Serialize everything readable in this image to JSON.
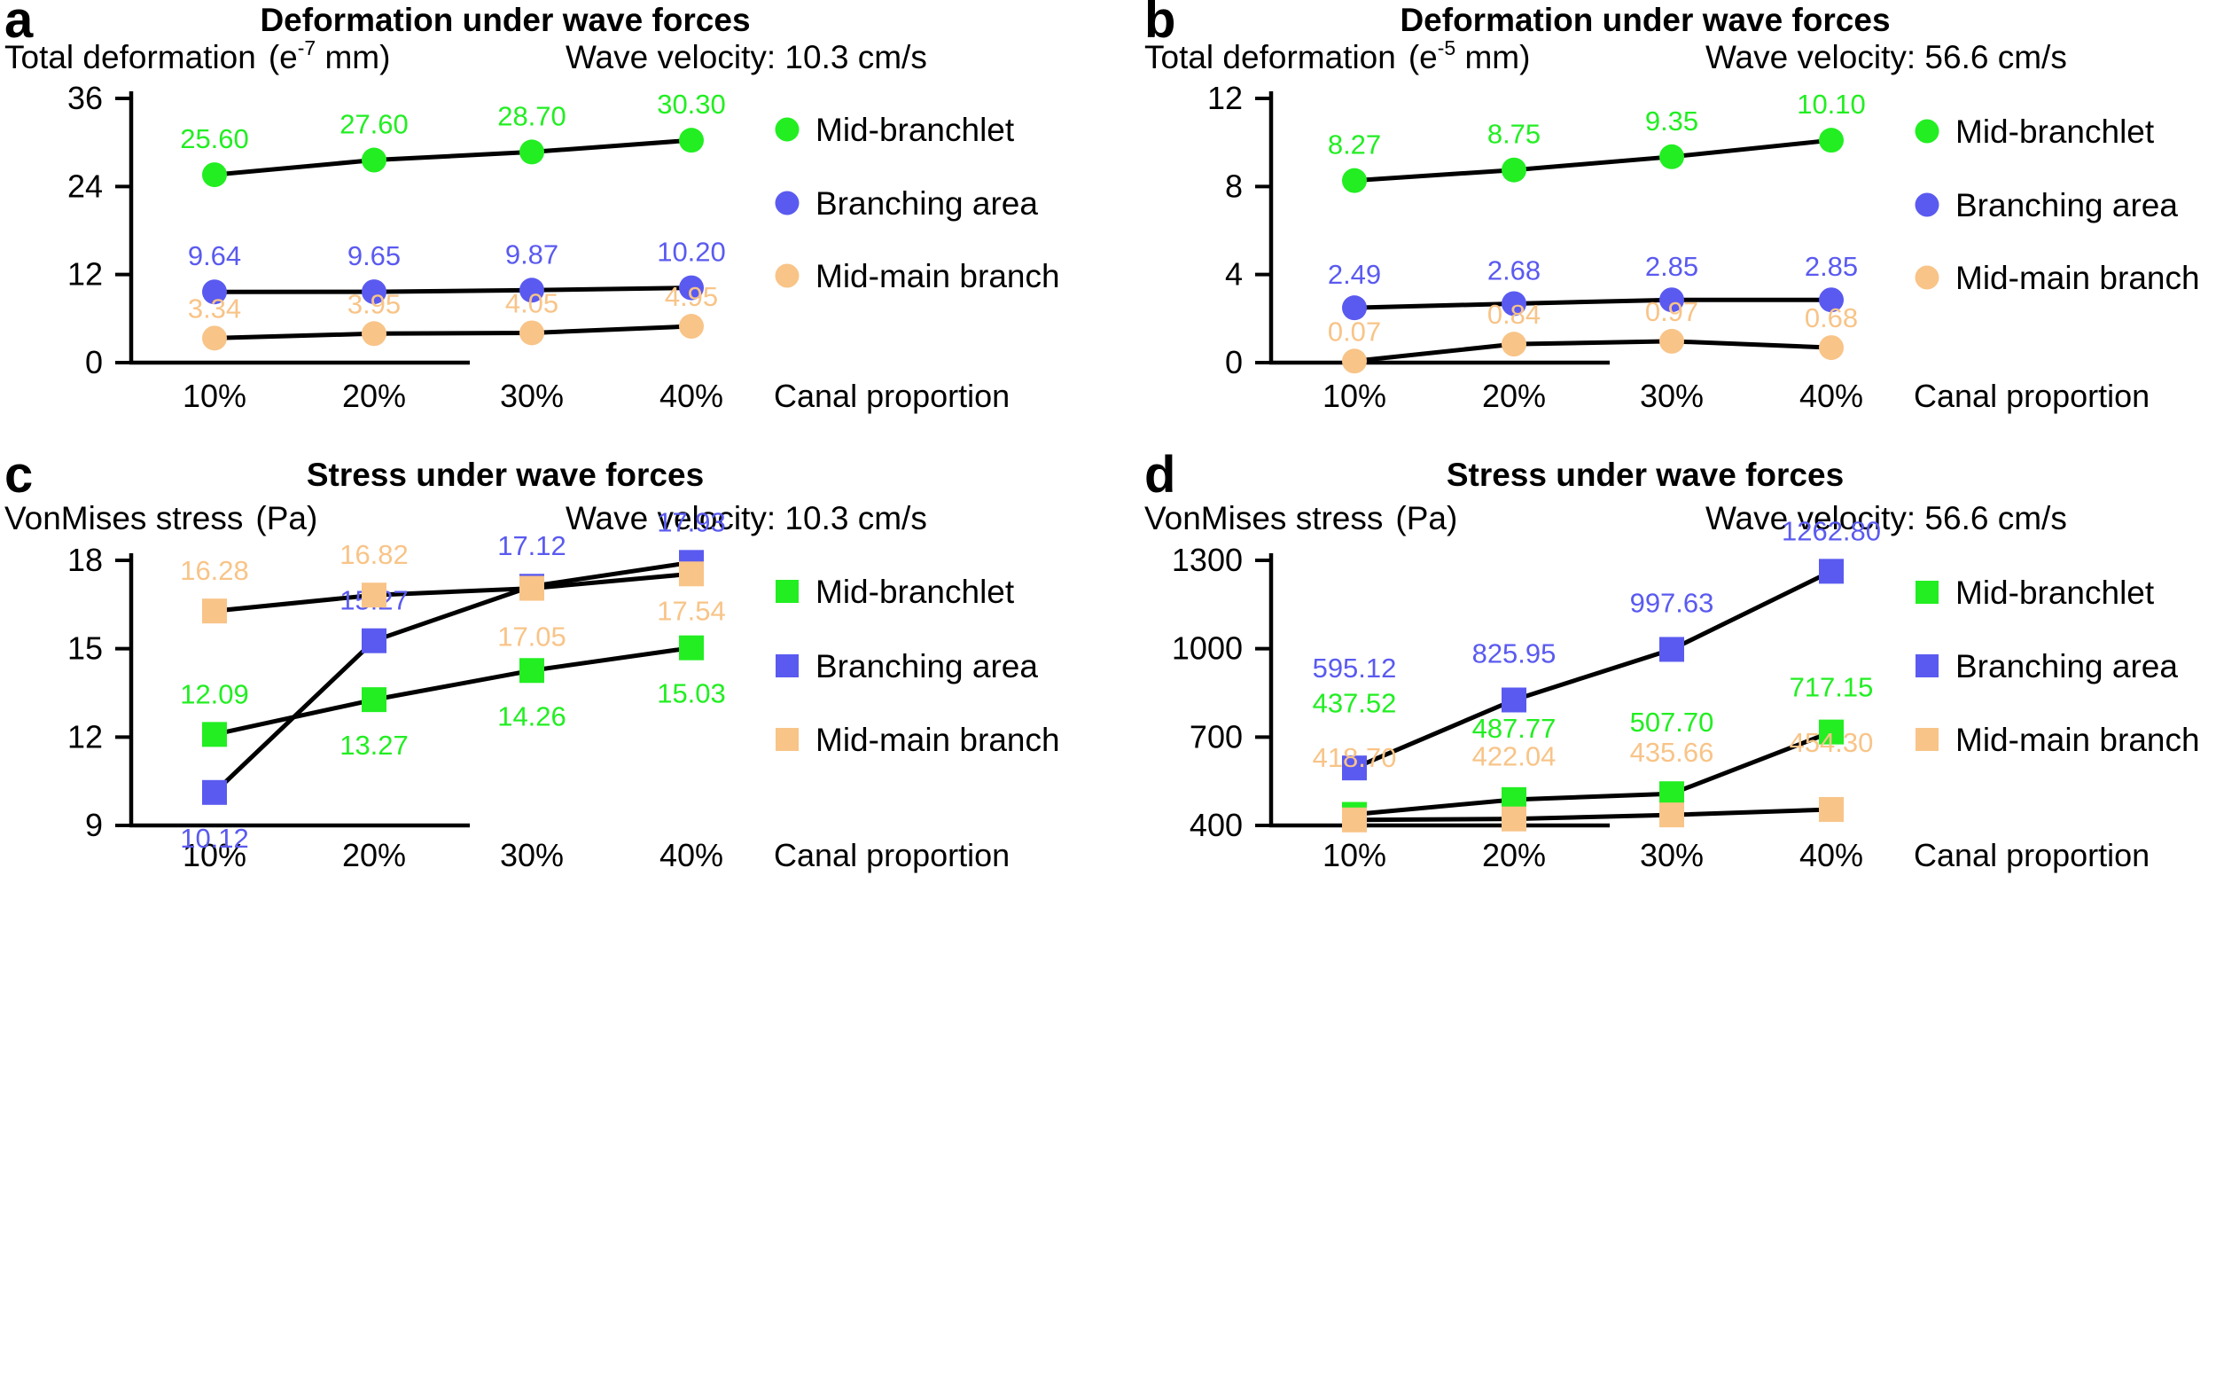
{
  "colors": {
    "mid_branchlet": "#22ee22",
    "branching_area": "#5a5af0",
    "mid_main_branch": "#f8c488",
    "line": "#000000",
    "axis": "#000000"
  },
  "chart_data": [
    {
      "type": "line",
      "panel": "a",
      "title": "Deformation under wave forces",
      "ylabel": "Total deformation",
      "yunit_base": "(e",
      "yunit_exp": "-7",
      "yunit_rest": " mm)",
      "condition": "Wave velocity: 10.3 cm/s",
      "xlabel": "Canal proportion",
      "marker": "circle",
      "categories": [
        "10%",
        "20%",
        "30%",
        "40%"
      ],
      "ylim": [
        0,
        36
      ],
      "yticks": [
        "0",
        "12",
        "24",
        "36"
      ],
      "legend": [
        "Mid-branchlet",
        "Branching area",
        "Mid-main branch"
      ],
      "series": [
        {
          "name": "Mid-branchlet",
          "values": [
            25.6,
            27.6,
            28.7,
            30.3
          ],
          "labels": [
            "25.60",
            "27.60",
            "28.70",
            "30.30"
          ]
        },
        {
          "name": "Branching area",
          "values": [
            9.64,
            9.65,
            9.87,
            10.2
          ],
          "labels": [
            "9.64",
            "9.65",
            "9.87",
            "10.20"
          ]
        },
        {
          "name": "Mid-main branch",
          "values": [
            3.34,
            3.95,
            4.05,
            4.95
          ],
          "labels": [
            "3.34",
            "3.95",
            "4.05",
            "4.95"
          ]
        }
      ]
    },
    {
      "type": "line",
      "panel": "b",
      "title": "Deformation under wave forces",
      "ylabel": "Total deformation",
      "yunit_base": "(e",
      "yunit_exp": "-5",
      "yunit_rest": " mm)",
      "condition": "Wave velocity: 56.6 cm/s",
      "xlabel": "Canal proportion",
      "marker": "circle",
      "categories": [
        "10%",
        "20%",
        "30%",
        "40%"
      ],
      "ylim": [
        0,
        12
      ],
      "yticks": [
        "0",
        "4",
        "8",
        "12"
      ],
      "legend": [
        "Mid-branchlet",
        "Branching area",
        "Mid-main branch"
      ],
      "series": [
        {
          "name": "Mid-branchlet",
          "values": [
            8.27,
            8.75,
            9.35,
            10.1
          ],
          "labels": [
            "8.27",
            "8.75",
            "9.35",
            "10.10"
          ]
        },
        {
          "name": "Branching area",
          "values": [
            2.49,
            2.68,
            2.85,
            2.85
          ],
          "labels": [
            "2.49",
            "2.68",
            "2.85",
            "2.85"
          ]
        },
        {
          "name": "Mid-main branch",
          "values": [
            0.07,
            0.84,
            0.97,
            0.68
          ],
          "labels": [
            "0.07",
            "0.84",
            "0.97",
            "0.68"
          ]
        }
      ]
    },
    {
      "type": "line",
      "panel": "c",
      "title": "Stress under wave forces",
      "ylabel": "VonMises stress",
      "yunit_base": "(Pa)",
      "yunit_exp": "",
      "yunit_rest": "",
      "condition": "Wave velocity: 10.3 cm/s",
      "xlabel": "Canal proportion",
      "marker": "square",
      "categories": [
        "10%",
        "20%",
        "30%",
        "40%"
      ],
      "ylim": [
        9,
        18
      ],
      "yticks": [
        "9",
        "12",
        "15",
        "18"
      ],
      "legend": [
        "Mid-branchlet",
        "Branching area",
        "Mid-main branch"
      ],
      "series": [
        {
          "name": "Mid-branchlet",
          "values": [
            12.09,
            13.27,
            14.26,
            15.03
          ],
          "labels": [
            "12.09",
            "13.27",
            "14.26",
            "15.03"
          ]
        },
        {
          "name": "Branching area",
          "values": [
            10.12,
            15.27,
            17.12,
            17.93
          ],
          "labels": [
            "10.12",
            "15.27",
            "17.12",
            "17.93"
          ]
        },
        {
          "name": "Mid-main branch",
          "values": [
            16.28,
            16.82,
            17.05,
            17.54
          ],
          "labels": [
            "16.28",
            "16.82",
            "17.05",
            "17.54"
          ]
        }
      ]
    },
    {
      "type": "line",
      "panel": "d",
      "title": "Stress under wave forces",
      "ylabel": "VonMises stress",
      "yunit_base": "(Pa)",
      "yunit_exp": "",
      "yunit_rest": "",
      "condition": "Wave velocity: 56.6 cm/s",
      "xlabel": "Canal proportion",
      "marker": "square",
      "categories": [
        "10%",
        "20%",
        "30%",
        "40%"
      ],
      "ylim": [
        400,
        1300
      ],
      "yticks": [
        "400",
        "700",
        "1000",
        "1300"
      ],
      "legend": [
        "Mid-branchlet",
        "Branching area",
        "Mid-main branch"
      ],
      "series": [
        {
          "name": "Mid-branchlet",
          "values": [
            437.52,
            487.77,
            507.7,
            717.15
          ],
          "labels": [
            "437.52",
            "487.77",
            "507.70",
            "717.15"
          ]
        },
        {
          "name": "Branching area",
          "values": [
            595.12,
            825.95,
            997.63,
            1262.8
          ],
          "labels": [
            "595.12",
            "825.95",
            "997.63",
            "1262.80"
          ]
        },
        {
          "name": "Mid-main branch",
          "values": [
            418.7,
            422.04,
            435.66,
            454.3
          ],
          "labels": [
            "418.70",
            "422.04",
            "435.66",
            "454.30"
          ]
        }
      ]
    }
  ]
}
